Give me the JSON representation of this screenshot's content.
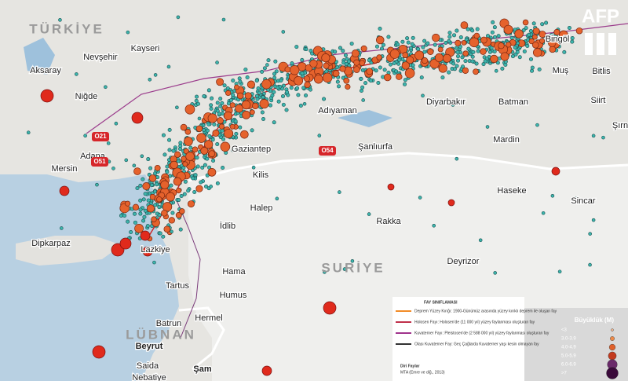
{
  "logo": "AFP",
  "country_labels": [
    "TÜRKİYE",
    "SURİYE",
    "LÜBNAN"
  ],
  "city_labels": [
    "Nevşehir",
    "Kayseri",
    "Aksaray",
    "Niğde",
    "Adana",
    "Mersin",
    "Gaziantep",
    "Kilis",
    "Şanlıurfa",
    "Adıyaman",
    "Diyarbakır",
    "Batman",
    "Bingöl",
    "Muş",
    "Bitlis",
    "Siirt",
    "Şırn",
    "Mardin",
    "Haseke",
    "Sincar",
    "Halep",
    "Rakka",
    "İdlib",
    "Deyrizor",
    "Hama",
    "Humus",
    "Tartus",
    "Lazkiye",
    "Dipkarpaz",
    "Hermel",
    "Batrun",
    "Beyrut",
    "Saida",
    "Şam",
    "Nebatiye"
  ],
  "road_labels": [
    "O21",
    "O51",
    "O54"
  ],
  "legend": {
    "fault_title": "FAY SINIFLAMASI",
    "fault_items": [
      "Deprem Yüzey Kırığı: 1900-Günümüz arasında yüzey kırıklı deprem ile oluşan fay",
      "Holosen Fayı: Holosen'de (11 000 yıl) yüzey faylanması oluşturan fay",
      "Kuvaterner Fayı: Pleistosen'de (2 588 000 yıl) yüzey faylanması oluşturan fay",
      "Olası Kuvaterner Fay: Geç Çağlarda Kuvaterner yaşı kesin olmayan fay"
    ],
    "magnitude_title": "Büyüklük (M)",
    "magnitude_items": [
      "<3",
      "3.0-3.9",
      "4.0-4.9",
      "5.0-5.9",
      "6.0-6.9",
      ">7"
    ],
    "source": [
      "Diri Faylar",
      "MTA (Emre ve diğ., 2013)"
    ]
  }
}
